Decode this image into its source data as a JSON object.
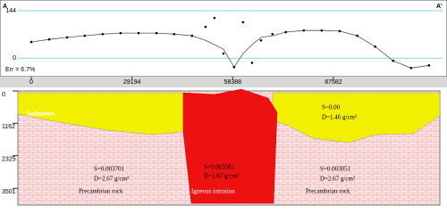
{
  "chart_data": [
    {
      "type": "profile",
      "left_label": "A",
      "right_label": "A'",
      "annotation": "Err = 6.7%",
      "x": [
        0,
        5200,
        10400,
        15500,
        20700,
        25900,
        31100,
        36300,
        41400,
        46600,
        50500,
        53100,
        55700,
        58800,
        61400,
        64000,
        66600,
        69900,
        73800,
        79000,
        84200,
        89400,
        94500,
        99700,
        104900,
        110100,
        115300
      ],
      "series": [
        {
          "color": "#000000",
          "values": [
            49,
            57,
            63,
            68,
            73,
            76,
            76,
            76,
            73,
            68,
            95,
            122,
            14,
            -27,
            109,
            -14,
            54,
            73,
            79,
            84,
            84,
            82,
            68,
            35,
            -8,
            -30,
            -22
          ]
        },
        {
          "color": "#555555",
          "values": [
            49,
            57,
            63,
            68,
            73,
            76,
            76,
            76,
            73,
            68,
            54,
            41,
            27,
            -27,
            14,
            41,
            63,
            68,
            79,
            84,
            84,
            82,
            68,
            35,
            -8,
            -30,
            -22
          ]
        }
      ],
      "xlim": [
        0,
        117400
      ],
      "xticks": [
        0,
        29194,
        58388,
        87582
      ],
      "ylim": [
        -40,
        144
      ],
      "yticks": [
        0,
        144
      ],
      "grid": true,
      "grid_color": "#7fd8e8"
    },
    {
      "type": "section",
      "ylim": [
        0,
        4100
      ],
      "yticks": [
        0,
        1162,
        2325,
        3501
      ],
      "bodies": [
        {
          "name": "Sediments",
          "s": "S=0.00",
          "d": "D=1.46 g/cm³"
        },
        {
          "name": "Precambrian rock",
          "s": "S=0.003701",
          "d": "D=2.67 g/cm³"
        },
        {
          "name": "Igneous intrusion",
          "s": "S=0.003501",
          "d": "D=2.67 g/cm³"
        },
        {
          "name": "Precambrian rock",
          "s": "S=0.003051",
          "d": "D=2.67 g/cm³"
        }
      ]
    }
  ]
}
